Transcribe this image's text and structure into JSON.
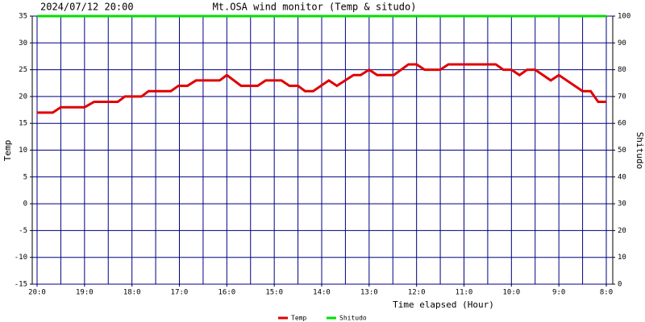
{
  "chart_data": {
    "type": "line",
    "header": "2024/07/12 20:00",
    "title": "Mt.OSA wind monitor (Temp & situdo)",
    "xlabel": "Time elapsed (Hour)",
    "ylabel": "Temp",
    "y2label": "Shitudo",
    "xlim": [
      0,
      12
    ],
    "xticks": [
      {
        "value": 0,
        "label": "20:0"
      },
      {
        "value": 1,
        "label": "19:0"
      },
      {
        "value": 2,
        "label": "18:0"
      },
      {
        "value": 3,
        "label": "17:0"
      },
      {
        "value": 4,
        "label": "16:0"
      },
      {
        "value": 5,
        "label": "15:0"
      },
      {
        "value": 6,
        "label": "14:0"
      },
      {
        "value": 7,
        "label": "13:0"
      },
      {
        "value": 8,
        "label": "12:0"
      },
      {
        "value": 9,
        "label": "11:0"
      },
      {
        "value": 10,
        "label": "10:0"
      },
      {
        "value": 11,
        "label": "9:0"
      },
      {
        "value": 12,
        "label": "8:0"
      }
    ],
    "ylim": [
      -15,
      35
    ],
    "yticks": [
      -15,
      -10,
      -5,
      0,
      5,
      10,
      15,
      20,
      25,
      30,
      35
    ],
    "y2lim": [
      0,
      100
    ],
    "y2ticks": [
      0,
      10,
      20,
      30,
      40,
      50,
      60,
      70,
      80,
      90,
      100
    ],
    "grid": true,
    "grid_color": "#000080",
    "series": [
      {
        "name": "Temp",
        "color": "#e00000",
        "x": [
          0,
          0.33,
          0.5,
          1.0,
          1.2,
          1.7,
          1.85,
          2.2,
          2.35,
          2.82,
          2.98,
          3.17,
          3.35,
          3.85,
          4.0,
          4.3,
          4.65,
          4.82,
          5.15,
          5.32,
          5.5,
          5.65,
          5.82,
          6.15,
          6.32,
          6.67,
          6.82,
          7.0,
          7.17,
          7.52,
          7.83,
          8.0,
          8.17,
          8.5,
          8.67,
          9.67,
          9.83,
          10.0,
          10.17,
          10.33,
          10.5,
          10.83,
          11.0,
          11.5,
          11.67,
          11.83,
          12.0
        ],
        "values": [
          17,
          17,
          18,
          18,
          19,
          19,
          20,
          20,
          21,
          21,
          22,
          22,
          23,
          23,
          24,
          22,
          22,
          23,
          23,
          22,
          22,
          21,
          21,
          23,
          22,
          24,
          24,
          25,
          24,
          24,
          26,
          26,
          25,
          25,
          26,
          26,
          25,
          25,
          24,
          25,
          25,
          23,
          24,
          21,
          21,
          19,
          19
        ]
      },
      {
        "name": "Shitudo",
        "color": "#00e000",
        "axis": "y2",
        "x": [
          0,
          12
        ],
        "values": [
          100,
          100
        ]
      }
    ]
  }
}
